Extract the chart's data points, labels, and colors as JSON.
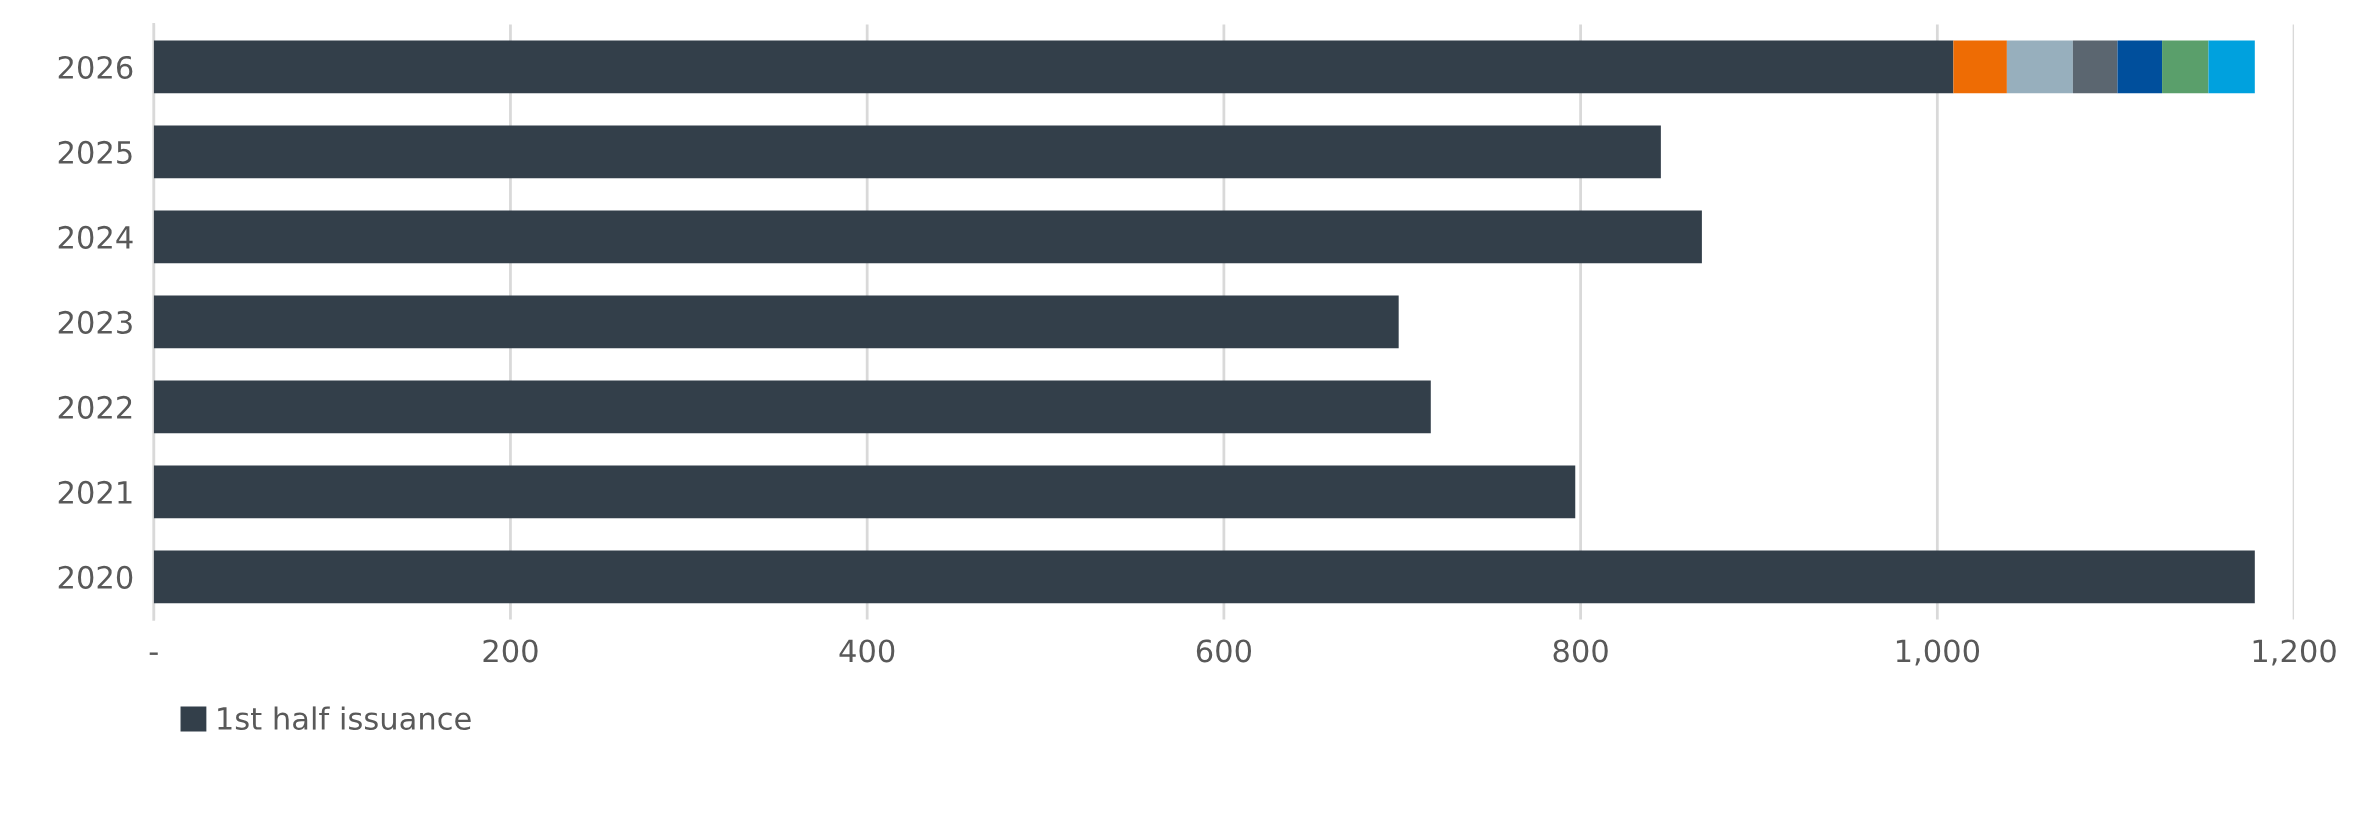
{
  "chart_data": {
    "type": "bar",
    "orientation": "horizontal",
    "stacked": true,
    "categories": [
      "2026",
      "2025",
      "2024",
      "2023",
      "2022",
      "2021",
      "2020"
    ],
    "series": [
      {
        "name": "1st half issuance",
        "color": "#333f4a",
        "values": [
          1009,
          845,
          868,
          698,
          716,
          797,
          1178
        ]
      },
      {
        "color": "#ee6c04",
        "values": [
          30,
          null,
          null,
          null,
          null,
          null,
          null
        ]
      },
      {
        "color": "#97afbd",
        "values": [
          37,
          null,
          null,
          null,
          null,
          null,
          null
        ]
      },
      {
        "color": "#5b6670",
        "values": [
          25,
          null,
          null,
          null,
          null,
          null,
          null
        ]
      },
      {
        "color": "#004f9c",
        "values": [
          25,
          null,
          null,
          null,
          null,
          null,
          null
        ]
      },
      {
        "color": "#5a9f6b",
        "values": [
          26,
          null,
          null,
          null,
          null,
          null,
          null
        ]
      },
      {
        "color": "#00a1de",
        "values": [
          26,
          null,
          null,
          null,
          null,
          null,
          null
        ]
      }
    ],
    "xlim": [
      0,
      1200
    ],
    "xticks": [
      {
        "value": 0,
        "label": "-"
      },
      200,
      400,
      600,
      800,
      {
        "value": 1000,
        "label": "1,000"
      },
      {
        "value": 1200,
        "label": "1,200"
      }
    ],
    "grid": "x",
    "legend": "bottom"
  }
}
